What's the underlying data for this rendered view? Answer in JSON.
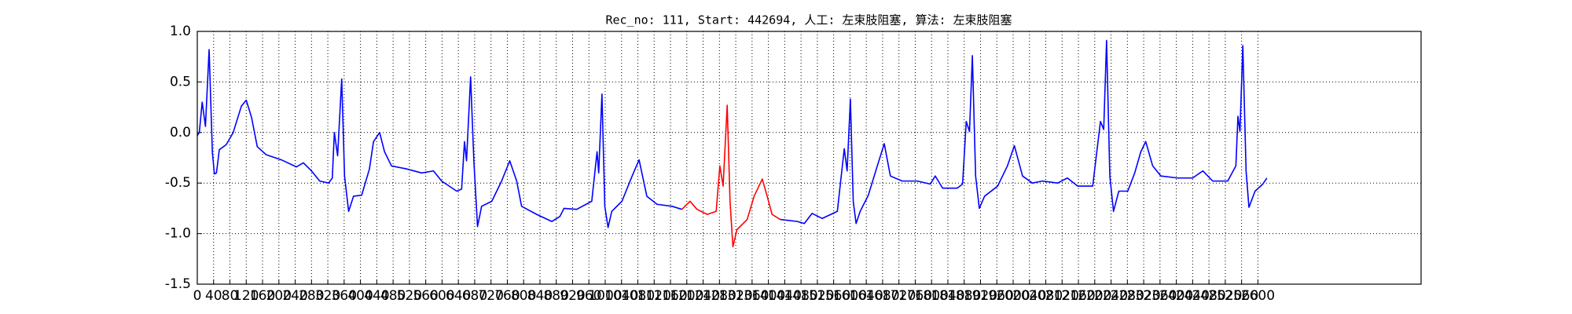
{
  "chart_data": {
    "type": "line",
    "title": "Rec_no: 111, Start: 442694, 人工: 左束肢阻塞, 算法: 左束肢阻塞",
    "xlim": [
      0,
      3000
    ],
    "xticks": [
      0,
      40,
      80,
      120,
      160,
      200,
      240,
      280,
      320,
      360,
      400,
      440,
      480,
      520,
      560,
      600,
      640,
      680,
      720,
      760,
      800,
      840,
      880,
      920,
      960,
      1000,
      1040,
      1080,
      1120,
      1160,
      1200,
      1240,
      1280,
      1320,
      1360,
      1400,
      1440,
      1480,
      1520,
      1560,
      1600,
      1640,
      1680,
      1720,
      1760,
      1800,
      1840,
      1880,
      1920,
      1960,
      2000,
      2040,
      2080,
      2120,
      2160,
      2200,
      2240,
      2280,
      2320,
      2360,
      2400,
      2440,
      2480,
      2520,
      2560,
      2600
    ],
    "ylim": [
      -1.5,
      1.0
    ],
    "yticks": [
      {
        "value": -1.5,
        "label": "-1.5"
      },
      {
        "value": -1.0,
        "label": "-1.0"
      },
      {
        "value": -0.5,
        "label": "-0.5"
      },
      {
        "value": 0.0,
        "label": "0.0"
      },
      {
        "value": 0.5,
        "label": "0.5"
      },
      {
        "value": 1.0,
        "label": "1.0"
      }
    ],
    "grid": true,
    "series": [
      {
        "color": "#0000ff",
        "x": [
          0,
          5,
          12,
          20,
          29,
          37,
          42,
          47,
          54,
          71,
          88,
          108,
          120,
          133,
          147,
          169,
          206,
          243,
          260,
          280,
          300,
          322,
          331,
          336,
          344,
          354,
          361,
          371,
          383,
          403,
          422,
          432,
          447,
          459,
          476,
          513,
          550,
          579,
          599,
          636,
          648,
          655,
          660,
          670,
          678,
          687,
          697,
          722,
          746,
          766,
          783,
          795,
          832,
          869,
          889,
          899,
          930,
          967,
          980,
          984,
          992,
          999,
          1007,
          1016,
          1041,
          1066,
          1083,
          1102,
          1127,
          1164,
          1188,
          1300,
          1429,
          1471,
          1488,
          1507,
          1532,
          1569,
          1586,
          1593,
          1601,
          1608,
          1615,
          1625,
          1645,
          1667,
          1684,
          1699,
          1728,
          1765,
          1797,
          1809,
          1827,
          1863,
          1876,
          1885,
          1893,
          1900,
          1908,
          1917,
          1930,
          1962,
          1986,
          2003,
          2023,
          2047,
          2072,
          2109,
          2133,
          2158,
          2195,
          2214,
          2222,
          2229,
          2237,
          2246,
          2259,
          2281,
          2298,
          2313,
          2325,
          2342,
          2362,
          2403,
          2440,
          2465,
          2489,
          2526,
          2546,
          2551,
          2556,
          2563,
          2571,
          2578,
          2593,
          2612,
          2622
        ],
        "values": [
          -0.03,
          0.0,
          0.3,
          0.06,
          0.82,
          -0.2,
          -0.41,
          -0.4,
          -0.17,
          -0.12,
          0.0,
          0.26,
          0.32,
          0.15,
          -0.14,
          -0.22,
          -0.27,
          -0.34,
          -0.3,
          -0.38,
          -0.48,
          -0.5,
          -0.45,
          0.0,
          -0.23,
          0.53,
          -0.43,
          -0.78,
          -0.63,
          -0.62,
          -0.36,
          -0.09,
          0.0,
          -0.19,
          -0.33,
          -0.36,
          -0.4,
          -0.38,
          -0.48,
          -0.58,
          -0.56,
          -0.09,
          -0.28,
          0.55,
          -0.28,
          -0.93,
          -0.73,
          -0.68,
          -0.48,
          -0.28,
          -0.48,
          -0.73,
          -0.81,
          -0.88,
          -0.83,
          -0.75,
          -0.76,
          -0.68,
          -0.19,
          -0.4,
          0.38,
          -0.73,
          -0.94,
          -0.78,
          -0.68,
          -0.43,
          -0.27,
          -0.63,
          -0.71,
          -0.73,
          -0.76,
          null,
          -0.86,
          -0.88,
          -0.9,
          -0.8,
          -0.85,
          -0.78,
          -0.16,
          -0.38,
          0.33,
          -0.68,
          -0.9,
          -0.78,
          -0.62,
          -0.33,
          -0.11,
          -0.43,
          -0.48,
          -0.48,
          -0.51,
          -0.43,
          -0.55,
          -0.55,
          -0.51,
          0.11,
          0.01,
          0.76,
          -0.43,
          -0.75,
          -0.63,
          -0.53,
          -0.33,
          -0.13,
          -0.43,
          -0.5,
          -0.48,
          -0.5,
          -0.45,
          -0.53,
          -0.53,
          0.11,
          0.03,
          0.91,
          -0.43,
          -0.78,
          -0.58,
          -0.58,
          -0.4,
          -0.19,
          -0.09,
          -0.33,
          -0.43,
          -0.45,
          -0.45,
          -0.38,
          -0.48,
          -0.48,
          -0.33,
          0.16,
          0.01,
          0.86,
          -0.38,
          -0.74,
          -0.58,
          -0.51,
          -0.45
        ]
      },
      {
        "color": "#ff0000",
        "x": [
          1188,
          1208,
          1225,
          1250,
          1272,
          1281,
          1289,
          1299,
          1306,
          1313,
          1323,
          1348,
          1365,
          1385,
          1397,
          1409,
          1429
        ],
        "values": [
          -0.76,
          -0.68,
          -0.76,
          -0.81,
          -0.78,
          -0.33,
          -0.53,
          0.27,
          -0.68,
          -1.13,
          -0.96,
          -0.86,
          -0.63,
          -0.46,
          -0.63,
          -0.81,
          -0.86
        ]
      }
    ]
  }
}
